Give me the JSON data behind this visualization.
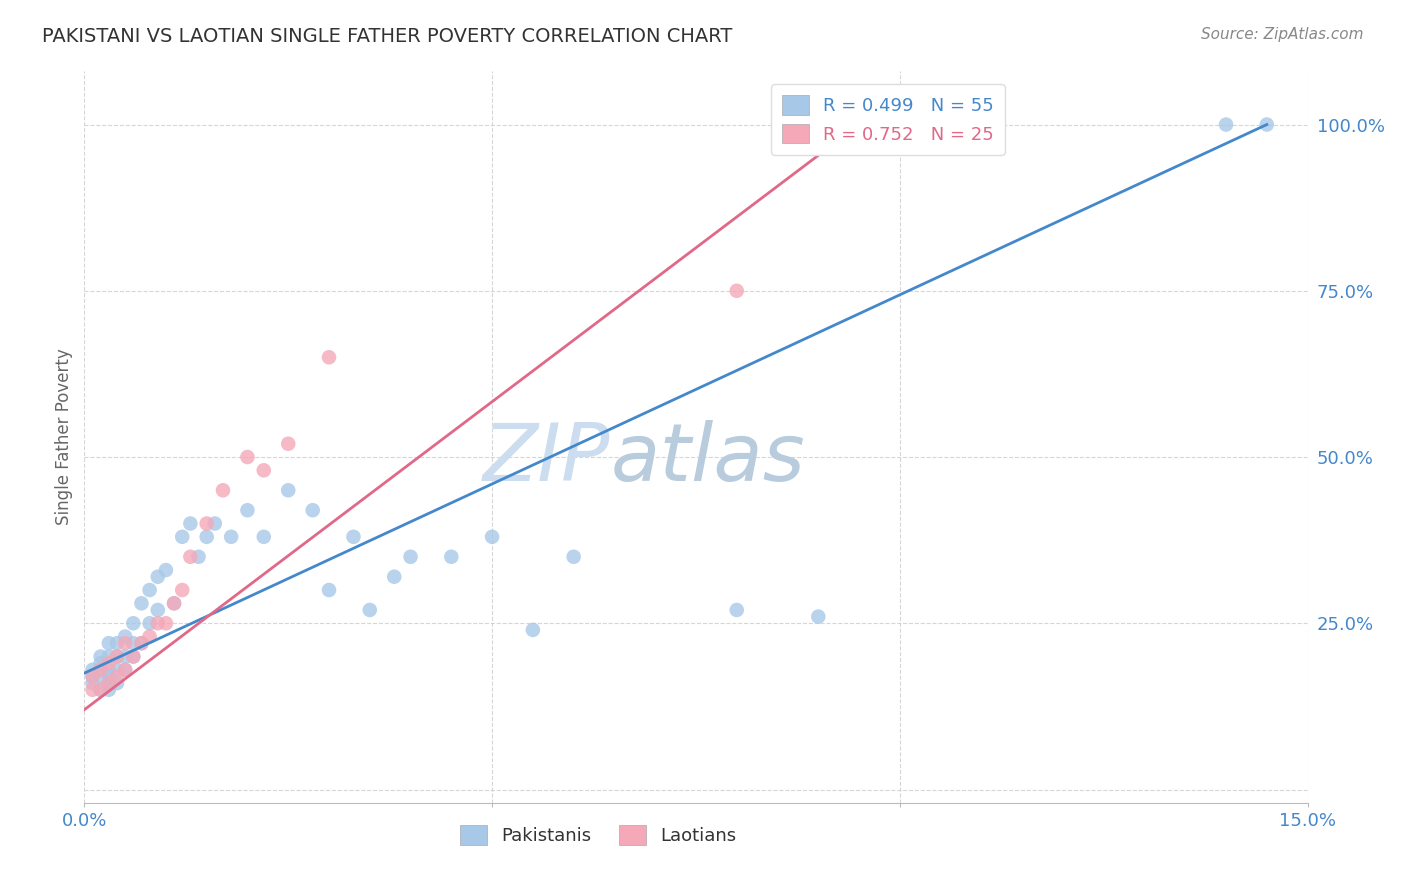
{
  "title": "PAKISTANI VS LAOTIAN SINGLE FATHER POVERTY CORRELATION CHART",
  "source": "Source: ZipAtlas.com",
  "ylabel": "Single Father Poverty",
  "xlim": [
    0.0,
    0.15
  ],
  "ylim": [
    -0.02,
    1.08
  ],
  "x_ticks": [
    0.0,
    0.05,
    0.1,
    0.15
  ],
  "x_tick_labels": [
    "0.0%",
    "",
    "",
    "15.0%"
  ],
  "y_ticks": [
    0.0,
    0.25,
    0.5,
    0.75,
    1.0
  ],
  "y_tick_labels_right": [
    "",
    "25.0%",
    "50.0%",
    "75.0%",
    "100.0%"
  ],
  "blue_R": 0.499,
  "blue_N": 55,
  "pink_R": 0.752,
  "pink_N": 25,
  "blue_color": "#a8c8e8",
  "pink_color": "#f4a8b8",
  "blue_line_color": "#4488cc",
  "pink_line_color": "#e06888",
  "pakistani_x": [
    0.001,
    0.001,
    0.001,
    0.002,
    0.002,
    0.002,
    0.002,
    0.002,
    0.003,
    0.003,
    0.003,
    0.003,
    0.003,
    0.003,
    0.004,
    0.004,
    0.004,
    0.004,
    0.005,
    0.005,
    0.005,
    0.006,
    0.006,
    0.006,
    0.007,
    0.007,
    0.008,
    0.008,
    0.009,
    0.009,
    0.01,
    0.011,
    0.012,
    0.013,
    0.014,
    0.015,
    0.016,
    0.018,
    0.02,
    0.022,
    0.025,
    0.028,
    0.03,
    0.033,
    0.035,
    0.038,
    0.04,
    0.045,
    0.05,
    0.055,
    0.06,
    0.08,
    0.09,
    0.14,
    0.145
  ],
  "pakistani_y": [
    0.16,
    0.17,
    0.18,
    0.15,
    0.17,
    0.18,
    0.19,
    0.2,
    0.15,
    0.16,
    0.17,
    0.18,
    0.2,
    0.22,
    0.16,
    0.18,
    0.2,
    0.22,
    0.18,
    0.2,
    0.23,
    0.2,
    0.22,
    0.25,
    0.22,
    0.28,
    0.25,
    0.3,
    0.27,
    0.32,
    0.33,
    0.28,
    0.38,
    0.4,
    0.35,
    0.38,
    0.4,
    0.38,
    0.42,
    0.38,
    0.45,
    0.42,
    0.3,
    0.38,
    0.27,
    0.32,
    0.35,
    0.35,
    0.38,
    0.24,
    0.35,
    0.27,
    0.26,
    1.0,
    1.0
  ],
  "laotian_x": [
    0.001,
    0.001,
    0.002,
    0.002,
    0.003,
    0.003,
    0.004,
    0.004,
    0.005,
    0.005,
    0.006,
    0.007,
    0.008,
    0.009,
    0.01,
    0.011,
    0.012,
    0.013,
    0.015,
    0.017,
    0.02,
    0.022,
    0.025,
    0.03,
    0.08
  ],
  "laotian_y": [
    0.15,
    0.17,
    0.15,
    0.18,
    0.16,
    0.19,
    0.17,
    0.2,
    0.18,
    0.22,
    0.2,
    0.22,
    0.23,
    0.25,
    0.25,
    0.28,
    0.3,
    0.35,
    0.4,
    0.45,
    0.5,
    0.48,
    0.52,
    0.65,
    0.75
  ],
  "blue_line_x": [
    0.0,
    0.145
  ],
  "blue_line_y": [
    0.175,
    1.0
  ],
  "pink_line_x": [
    0.0,
    0.095
  ],
  "pink_line_y": [
    0.12,
    1.0
  ],
  "background_color": "#ffffff",
  "grid_color": "#cccccc",
  "watermark_color": "#ccddf0",
  "title_color": "#333333",
  "axis_label_color": "#4488cc",
  "ylabel_color": "#666666",
  "legend_label_blue": "R = 0.499   N = 55",
  "legend_label_pink": "R = 0.752   N = 25",
  "legend_labels_bottom": [
    "Pakistanis",
    "Laotians"
  ]
}
